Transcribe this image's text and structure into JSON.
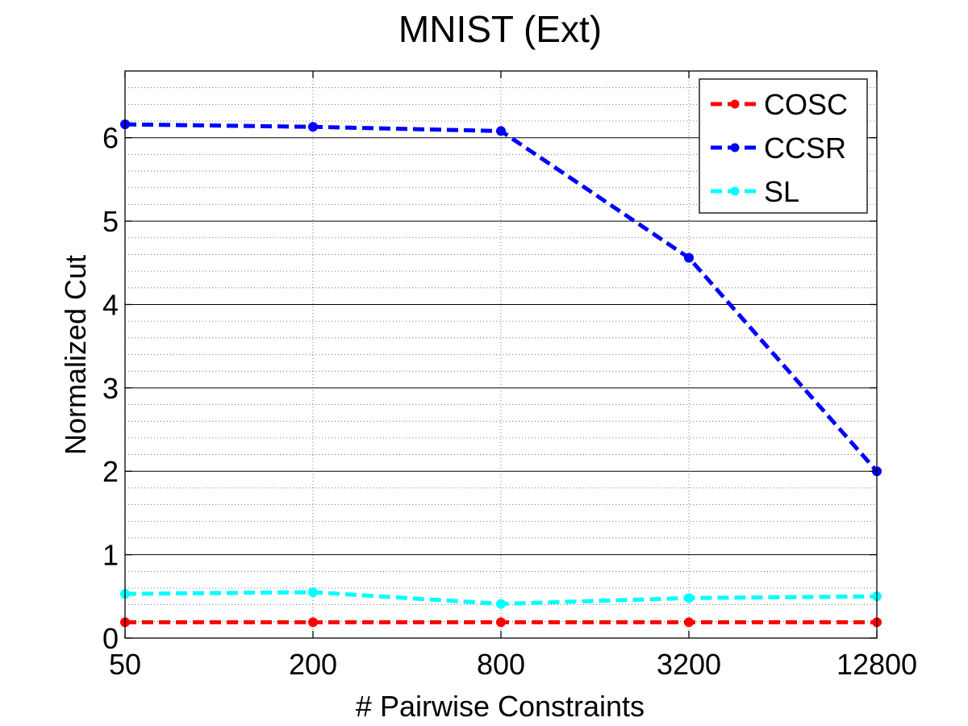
{
  "chart_data": {
    "type": "line",
    "title": "MNIST (Ext)",
    "xlabel": "# Pairwise Constraints",
    "ylabel": "Normalized Cut",
    "categories": [
      "50",
      "200",
      "800",
      "3200",
      "12800"
    ],
    "ylim": [
      0,
      6.8
    ],
    "yticks": [
      0,
      1,
      2,
      3,
      4,
      5,
      6
    ],
    "ytick_labels": [
      "0",
      "1",
      "2",
      "3",
      "4",
      "5",
      "6"
    ],
    "grid": "major and minor",
    "legend_position": "top-right",
    "series": [
      {
        "name": "COSC",
        "color": "#ff0000",
        "values": [
          0.19,
          0.19,
          0.19,
          0.19,
          0.19
        ]
      },
      {
        "name": "CCSR",
        "color": "#0000ff",
        "values": [
          6.16,
          6.13,
          6.08,
          4.56,
          2.0
        ]
      },
      {
        "name": "SL",
        "color": "#00ffff",
        "values": [
          0.53,
          0.55,
          0.41,
          0.48,
          0.5
        ]
      }
    ]
  }
}
